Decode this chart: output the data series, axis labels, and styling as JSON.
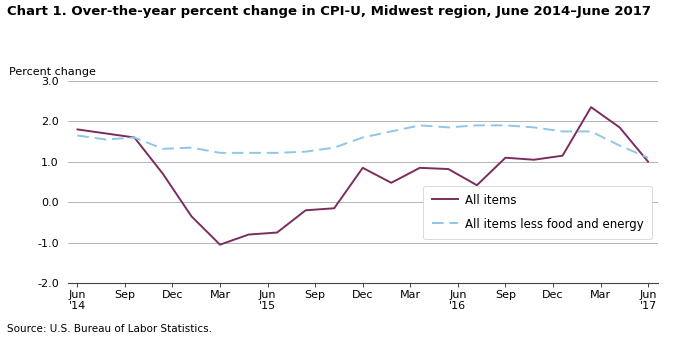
{
  "title": "Chart 1. Over-the-year percent change in CPI-U, Midwest region, June 2014–June 2017",
  "ylabel": "Percent change",
  "source": "Source: U.S. Bureau of Labor Statistics.",
  "ylim": [
    -2.0,
    3.0
  ],
  "yticks": [
    -2.0,
    -1.0,
    0.0,
    1.0,
    2.0,
    3.0
  ],
  "xtick_labels": [
    "Jun\n'14",
    "Sep",
    "Dec",
    "Mar",
    "Jun\n'15",
    "Sep",
    "Dec",
    "Mar",
    "Jun\n'16",
    "Sep",
    "Dec",
    "Mar",
    "Jun\n'17"
  ],
  "all_items": [
    1.8,
    1.7,
    1.6,
    0.7,
    -0.35,
    -1.05,
    -0.8,
    -0.75,
    -0.2,
    -0.15,
    0.85,
    0.48,
    0.85,
    0.82,
    0.42,
    1.1,
    1.05,
    1.15,
    2.35,
    1.85,
    1.0
  ],
  "all_items_less": [
    1.65,
    1.55,
    1.6,
    1.32,
    1.35,
    1.22,
    1.22,
    1.22,
    1.25,
    1.35,
    1.6,
    1.75,
    1.9,
    1.85,
    1.9,
    1.9,
    1.85,
    1.75,
    1.75,
    1.4,
    1.1
  ],
  "all_items_color": "#7B2D5E",
  "all_items_less_color": "#91C6E8",
  "background_color": "#ffffff",
  "grid_color": "#aaaaaa",
  "title_fontsize": 9.5,
  "ylabel_fontsize": 8.0,
  "axis_fontsize": 8.0,
  "legend_fontsize": 8.5,
  "source_fontsize": 7.5
}
